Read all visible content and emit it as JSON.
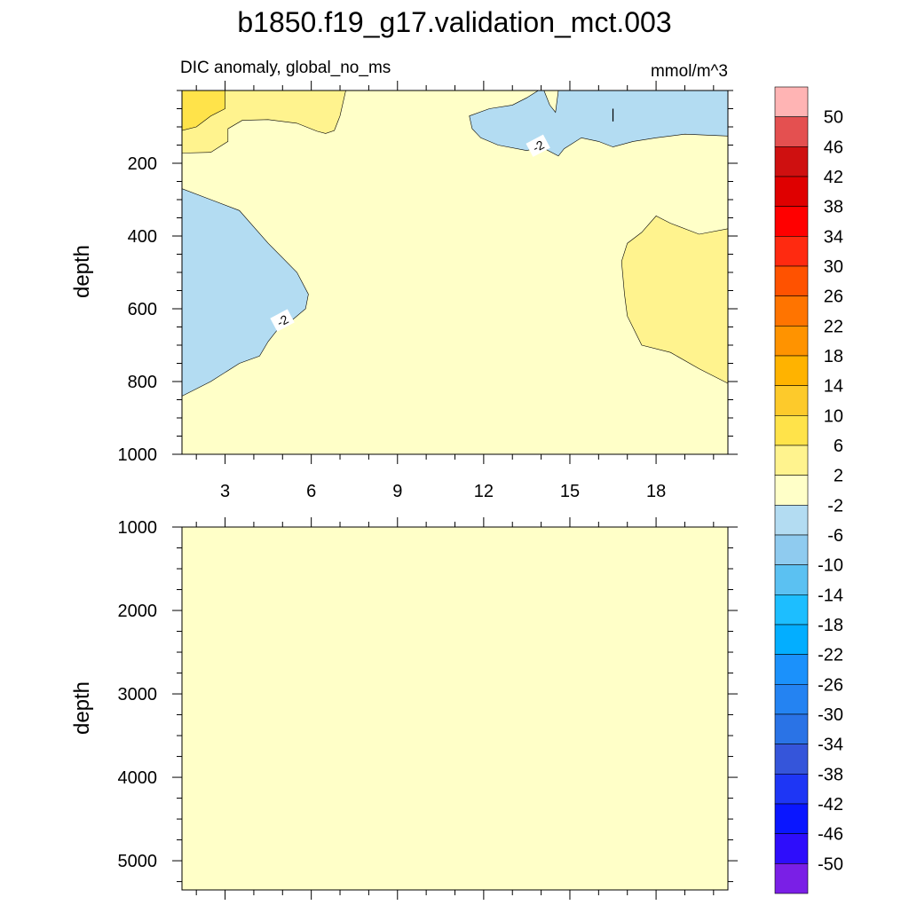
{
  "title": "b1850.f19_g17.validation_mct.003",
  "colors": {
    "background": "#FFFFC8",
    "positive_1": "#FFF38E",
    "positive_2": "#FFE34A",
    "negative_1": "#B3DCF2",
    "contour_line": "#000000"
  },
  "chart_data": [
    {
      "type": "heatmap",
      "panel": "upper",
      "subtitle_left": "DIC anomaly, global_no_ms",
      "subtitle_right": "mmol/m^3",
      "xlabel": "",
      "ylabel": "depth",
      "xlim": [
        1.5,
        20.5
      ],
      "ylim": [
        1000,
        0
      ],
      "x_ticks": [
        3,
        6,
        9,
        12,
        15,
        18
      ],
      "x_tick_labels": [
        "3",
        "6",
        "9",
        "12",
        "15",
        "18"
      ],
      "y_ticks": [
        200,
        400,
        600,
        800,
        1000
      ],
      "y_tick_labels": [
        "200",
        "400",
        "600",
        "800",
        "1000"
      ],
      "background_range": [
        -2,
        2
      ],
      "regions": [
        {
          "name": "surface-positive-west",
          "level_range": [
            2,
            6
          ],
          "color": "#FFF38E",
          "points": [
            [
              1.5,
              0
            ],
            [
              7.2,
              0
            ],
            [
              7.0,
              70
            ],
            [
              6.8,
              110
            ],
            [
              6.5,
              118
            ],
            [
              6.2,
              112
            ],
            [
              5.5,
              90
            ],
            [
              4.5,
              80
            ],
            [
              3.6,
              82
            ],
            [
              3.1,
              105
            ],
            [
              3.1,
              140
            ],
            [
              2.5,
              170
            ],
            [
              1.5,
              172
            ]
          ]
        },
        {
          "name": "surface-core-west",
          "level_range": [
            6,
            10
          ],
          "color": "#FFE34A",
          "points": [
            [
              1.5,
              0
            ],
            [
              3.0,
              0
            ],
            [
              3.0,
              50
            ],
            [
              2.5,
              70
            ],
            [
              2.0,
              100
            ],
            [
              1.5,
              110
            ]
          ]
        },
        {
          "name": "surface-negative-east",
          "level_range": [
            -6,
            -2
          ],
          "color": "#B3DCF2",
          "points": [
            [
              11.5,
              70
            ],
            [
              12.2,
              50
            ],
            [
              13.0,
              40
            ],
            [
              13.5,
              20
            ],
            [
              13.9,
              0
            ],
            [
              14.1,
              0
            ],
            [
              14.3,
              40
            ],
            [
              14.5,
              60
            ],
            [
              14.6,
              0
            ],
            [
              20.5,
              0
            ],
            [
              20.5,
              125
            ],
            [
              19.0,
              120
            ],
            [
              18.0,
              130
            ],
            [
              17.2,
              140
            ],
            [
              16.5,
              155
            ],
            [
              16.0,
              140
            ],
            [
              15.4,
              130
            ],
            [
              14.8,
              160
            ],
            [
              14.6,
              180
            ],
            [
              14.0,
              155
            ],
            [
              13.5,
              165
            ],
            [
              12.5,
              150
            ],
            [
              11.9,
              130
            ],
            [
              11.6,
              105
            ]
          ]
        },
        {
          "name": "mid-depth-negative-west",
          "level_range": [
            -6,
            -2
          ],
          "color": "#B3DCF2",
          "points": [
            [
              1.5,
              270
            ],
            [
              2.5,
              300
            ],
            [
              3.5,
              330
            ],
            [
              4.5,
              420
            ],
            [
              5.0,
              460
            ],
            [
              5.5,
              500
            ],
            [
              5.9,
              560
            ],
            [
              5.8,
              600
            ],
            [
              5.2,
              640
            ],
            [
              4.8,
              660
            ],
            [
              4.5,
              690
            ],
            [
              4.2,
              730
            ],
            [
              3.5,
              750
            ],
            [
              2.5,
              800
            ],
            [
              1.5,
              840
            ]
          ]
        },
        {
          "name": "mid-depth-positive-east",
          "level_range": [
            2,
            6
          ],
          "color": "#FFF38E",
          "points": [
            [
              20.5,
              380
            ],
            [
              19.5,
              395
            ],
            [
              18.5,
              365
            ],
            [
              18.0,
              345
            ],
            [
              17.5,
              390
            ],
            [
              17.0,
              420
            ],
            [
              16.8,
              470
            ],
            [
              16.9,
              560
            ],
            [
              17.0,
              620
            ],
            [
              17.5,
              700
            ],
            [
              18.5,
              720
            ],
            [
              19.5,
              765
            ],
            [
              20.5,
              805
            ]
          ]
        }
      ],
      "contour_labels": [
        {
          "text": "-2",
          "x": 13.9,
          "y": 153
        },
        {
          "text": "-2",
          "x": 5.0,
          "y": 633
        }
      ]
    },
    {
      "type": "heatmap",
      "panel": "lower",
      "xlabel": "",
      "ylabel": "depth",
      "xlim": [
        1.5,
        20.5
      ],
      "ylim": [
        5350,
        1000
      ],
      "x_ticks": [
        3,
        6,
        9,
        12,
        15,
        18
      ],
      "y_ticks": [
        1000,
        2000,
        3000,
        4000,
        5000
      ],
      "y_tick_labels": [
        "1000",
        "2000",
        "3000",
        "4000",
        "5000"
      ],
      "background_range": [
        -2,
        2
      ],
      "regions": []
    }
  ],
  "colorbar": {
    "labels": [
      "50",
      "46",
      "42",
      "38",
      "34",
      "30",
      "26",
      "22",
      "18",
      "14",
      "10",
      "6",
      "2",
      "-2",
      "-6",
      "-10",
      "-14",
      "-18",
      "-22",
      "-26",
      "-30",
      "-34",
      "-38",
      "-42",
      "-46",
      "-50"
    ],
    "colors": [
      "#FFB4B4",
      "#E45050",
      "#CF1010",
      "#DF0000",
      "#FF0000",
      "#FF2A10",
      "#FF5200",
      "#FF7400",
      "#FF9300",
      "#FFB300",
      "#FDCA2B",
      "#FFE34A",
      "#FFF38E",
      "#FFFFC8",
      "#B3DCF2",
      "#8FCBEF",
      "#5BC1F2",
      "#1DBEFF",
      "#03AEFF",
      "#1B91FB",
      "#2483F2",
      "#2A73E6",
      "#3555DA",
      "#1E36F5",
      "#0A16FF",
      "#2E0DFB",
      "#7A1FE6"
    ]
  }
}
